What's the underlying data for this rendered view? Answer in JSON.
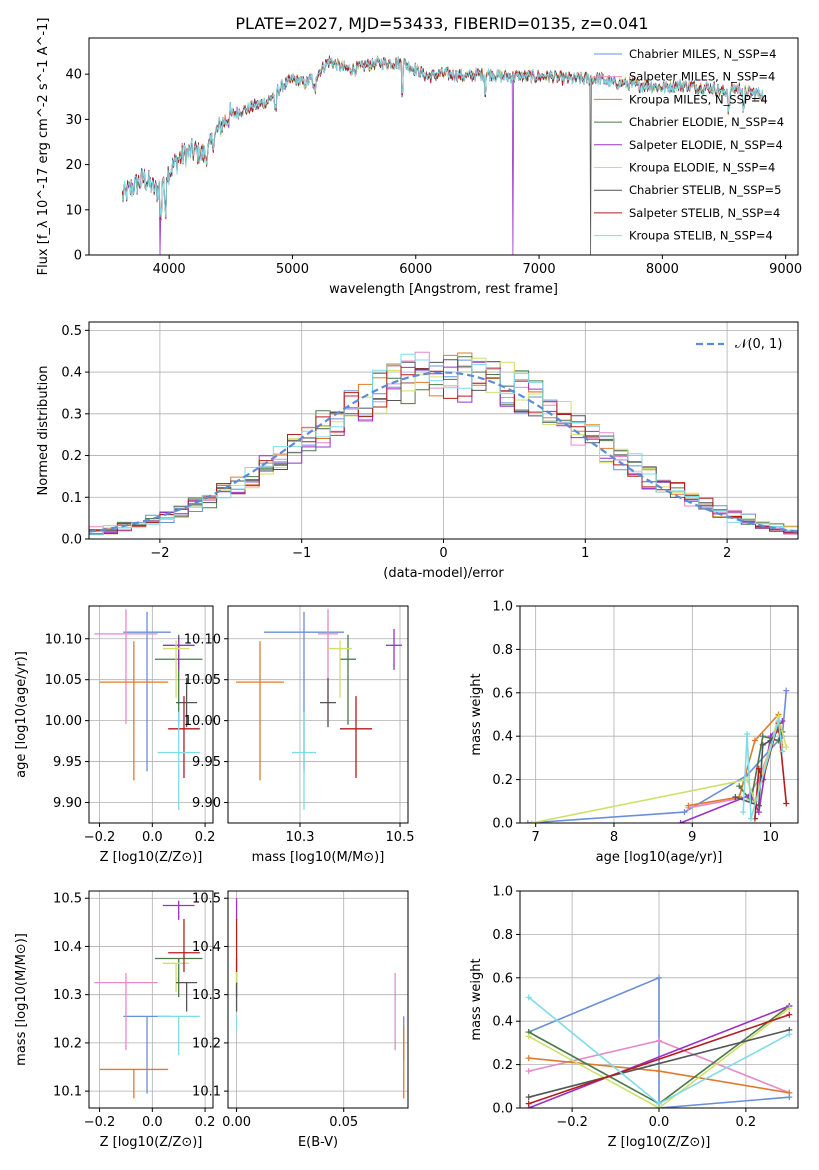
{
  "figure_title": "PLATE=2027, MJD=53433, FIBERID=0135, z=0.041",
  "colors": {
    "s1": "#6b8fd6",
    "s2": "#e58ac6",
    "s3": "#e07b2e",
    "s4": "#4a7a4a",
    "s5": "#9b30c8",
    "s6": "#cfe06a",
    "s7": "#555555",
    "s8": "#b01e1e",
    "s9": "#7fdbe8",
    "normal": "#5b8bd9"
  },
  "legend": {
    "labels": [
      "Chabrier MILES, N_SSP=4",
      "Salpeter MILES, N_SSP=4",
      "Kroupa MILES, N_SSP=4",
      "Chabrier ELODIE, N_SSP=4",
      "Salpeter ELODIE, N_SSP=4",
      "Kroupa ELODIE, N_SSP=4",
      "Chabrier STELIB, N_SSP=5",
      "Salpeter STELIB, N_SSP=4",
      "Kroupa STELIB, N_SSP=4"
    ],
    "normal_label": "𝒩(0, 1)"
  },
  "chart_data": [
    {
      "id": "spectrum",
      "type": "line",
      "xlabel": "wavelength [Angstrom, rest frame]",
      "ylabel": "Flux [f_λ 10^-17 erg cm^-2 s^-1 A^-1]",
      "xlim": [
        3350,
        9100
      ],
      "ylim": [
        0,
        48
      ],
      "xticks": [
        4000,
        5000,
        6000,
        7000,
        8000,
        9000
      ],
      "yticks": [
        0,
        10,
        20,
        30,
        40
      ],
      "grid": false,
      "legend_position": "right",
      "continuum_anchors": [
        [
          3620,
          13
        ],
        [
          3700,
          15
        ],
        [
          3800,
          17
        ],
        [
          3900,
          14
        ],
        [
          3950,
          17
        ],
        [
          4000,
          18.5
        ],
        [
          4100,
          22
        ],
        [
          4200,
          23
        ],
        [
          4300,
          22
        ],
        [
          4400,
          28
        ],
        [
          4500,
          31
        ],
        [
          4600,
          32
        ],
        [
          4700,
          33
        ],
        [
          4800,
          34
        ],
        [
          4900,
          37
        ],
        [
          5000,
          39
        ],
        [
          5100,
          38
        ],
        [
          5200,
          40
        ],
        [
          5300,
          43
        ],
        [
          5400,
          41.5
        ],
        [
          5500,
          41
        ],
        [
          5600,
          42
        ],
        [
          5700,
          42.5
        ],
        [
          5800,
          42.5
        ],
        [
          5900,
          42.5
        ],
        [
          6000,
          41
        ],
        [
          6100,
          39.5
        ],
        [
          6200,
          40
        ],
        [
          6300,
          40
        ],
        [
          6400,
          39.5
        ],
        [
          6500,
          40
        ],
        [
          6600,
          40
        ],
        [
          6700,
          39.5
        ],
        [
          6800,
          39.5
        ],
        [
          6900,
          39.5
        ],
        [
          7000,
          39.5
        ],
        [
          7100,
          39.5
        ],
        [
          7200,
          39
        ],
        [
          7300,
          39
        ],
        [
          7400,
          39
        ],
        [
          7500,
          39
        ],
        [
          7600,
          38
        ],
        [
          7700,
          38
        ],
        [
          7800,
          37.5
        ],
        [
          7900,
          37.5
        ],
        [
          8000,
          37
        ],
        [
          8100,
          37.5
        ],
        [
          8200,
          37.5
        ],
        [
          8300,
          37
        ],
        [
          8400,
          37
        ],
        [
          8500,
          36
        ],
        [
          8600,
          37
        ],
        [
          8700,
          36
        ],
        [
          8820,
          35.5
        ]
      ],
      "dropouts": [
        {
          "series": 5,
          "x": 3925,
          "y_min": 0
        },
        {
          "series": 5,
          "x": 6790,
          "y_min": 0
        },
        {
          "series": 7,
          "x": 7420,
          "y_min": 0
        }
      ]
    },
    {
      "id": "residual_hist",
      "type": "step",
      "xlabel": "(data-model)/error",
      "ylabel": "Normed distribution",
      "xlim": [
        -2.5,
        2.5
      ],
      "ylim": [
        0,
        0.52
      ],
      "xticks": [
        -2,
        -1,
        0,
        1,
        2
      ],
      "yticks": [
        0.0,
        0.1,
        0.2,
        0.3,
        0.4,
        0.5
      ],
      "grid": true,
      "legend_position": "top-right",
      "bin_edges_range": [
        -2.5,
        2.5
      ],
      "n_bins": 50,
      "normal_curve": {
        "mu": 0,
        "sigma": 1
      }
    },
    {
      "id": "age_vs_Z",
      "type": "errorbar",
      "xlabel": "Z [log10(Z/Z⊙)]",
      "ylabel": "age  [log10(age/yr)]",
      "xlim": [
        -0.24,
        0.23
      ],
      "ylim": [
        9.875,
        10.14
      ],
      "xticks": [
        -0.2,
        0.0,
        0.2
      ],
      "yticks": [
        9.9,
        9.95,
        10.0,
        10.05,
        10.1
      ],
      "grid": true,
      "points": [
        {
          "x": -0.02,
          "y": 10.108,
          "xerr": 0.09,
          "yerr": [
            0.17,
            0.025
          ]
        },
        {
          "x": -0.1,
          "y": 10.106,
          "xerr": 0.12,
          "yerr": [
            0.11,
            0.03
          ]
        },
        {
          "x": -0.07,
          "y": 10.047,
          "xerr": 0.13,
          "yerr": [
            0.12,
            0.05
          ]
        },
        {
          "x": 0.1,
          "y": 10.075,
          "xerr": 0.09,
          "yerr": [
            0.08,
            0.03
          ]
        },
        {
          "x": 0.1,
          "y": 10.092,
          "xerr": 0.06,
          "yerr": [
            0.03,
            0.01
          ]
        },
        {
          "x": 0.09,
          "y": 10.088,
          "xerr": 0.05,
          "yerr": [
            0.06,
            0.01
          ]
        },
        {
          "x": 0.13,
          "y": 10.022,
          "xerr": 0.04,
          "yerr": [
            0.03,
            0.03
          ]
        },
        {
          "x": 0.12,
          "y": 9.99,
          "xerr": 0.06,
          "yerr": [
            0.06,
            0.04
          ]
        },
        {
          "x": 0.1,
          "y": 9.961,
          "xerr": 0.08,
          "yerr": [
            0.07,
            0.05
          ]
        }
      ]
    },
    {
      "id": "age_vs_mass",
      "type": "errorbar",
      "xlabel": "mass [log10(M/M⊙)]",
      "ylabel": "",
      "xlim": [
        10.07,
        10.52
      ],
      "ylim": [
        9.875,
        10.14
      ],
      "xticks": [
        10.25,
        10.5
      ],
      "yticks": [
        9.9,
        9.95,
        10.0,
        10.05,
        10.1
      ],
      "grid": true,
      "points": [
        {
          "x": 10.26,
          "y": 10.108,
          "xerr": 0.1,
          "yerr": [
            0.17,
            0.025
          ]
        },
        {
          "x": 10.32,
          "y": 10.106,
          "xerr": 0.025,
          "yerr": [
            0.11,
            0.03
          ]
        },
        {
          "x": 10.15,
          "y": 10.047,
          "xerr": 0.06,
          "yerr": [
            0.12,
            0.05
          ]
        },
        {
          "x": 10.37,
          "y": 10.075,
          "xerr": 0.02,
          "yerr": [
            0.08,
            0.03
          ]
        },
        {
          "x": 10.485,
          "y": 10.092,
          "xerr": 0.02,
          "yerr": [
            0.03,
            0.02
          ]
        },
        {
          "x": 10.35,
          "y": 10.088,
          "xerr": 0.03,
          "yerr": [
            0.06,
            0.01
          ]
        },
        {
          "x": 10.32,
          "y": 10.022,
          "xerr": 0.02,
          "yerr": [
            0.03,
            0.03
          ]
        },
        {
          "x": 10.39,
          "y": 9.99,
          "xerr": 0.04,
          "yerr": [
            0.06,
            0.04
          ]
        },
        {
          "x": 10.26,
          "y": 9.961,
          "xerr": 0.03,
          "yerr": [
            0.07,
            0.05
          ]
        }
      ]
    },
    {
      "id": "mass_weight_vs_age",
      "type": "line",
      "xlabel": "age  [log10(age/yr)]",
      "ylabel": "mass weight",
      "xlim": [
        6.8,
        10.35
      ],
      "ylim": [
        0,
        1.0
      ],
      "xticks": [
        7,
        8,
        9,
        10
      ],
      "yticks": [
        0.0,
        0.2,
        0.4,
        0.6,
        0.8,
        1.0
      ],
      "grid": true,
      "series": [
        {
          "x": [
            6.9,
            8.9,
            9.7,
            10.15,
            10.2
          ],
          "y": [
            0.0,
            0.05,
            0.22,
            0.4,
            0.61
          ]
        },
        {
          "x": [
            8.95,
            9.7,
            9.85,
            10.1,
            10.15
          ],
          "y": [
            0.07,
            0.12,
            0.2,
            0.45,
            0.33
          ]
        },
        {
          "x": [
            8.95,
            9.6,
            9.8,
            10.1,
            10.15
          ],
          "y": [
            0.08,
            0.12,
            0.38,
            0.5,
            0.35
          ]
        },
        {
          "x": [
            9.6,
            9.75,
            9.9,
            10.1,
            10.15
          ],
          "y": [
            0.17,
            0.1,
            0.4,
            0.38,
            0.42
          ]
        },
        {
          "x": [
            8.85,
            9.75,
            9.85,
            10.0,
            10.15
          ],
          "y": [
            0.0,
            0.13,
            0.05,
            0.4,
            0.47
          ]
        },
        {
          "x": [
            6.95,
            9.7,
            9.8,
            10.1,
            10.2
          ],
          "y": [
            0.0,
            0.2,
            0.1,
            0.49,
            0.35
          ]
        },
        {
          "x": [
            9.55,
            9.85,
            9.9,
            10.0,
            10.1
          ],
          "y": [
            0.12,
            0.08,
            0.36,
            0.38,
            0.43
          ]
        },
        {
          "x": [
            9.8,
            9.85,
            9.9,
            10.1,
            10.2
          ],
          "y": [
            0.02,
            0.25,
            0.2,
            0.46,
            0.09
          ]
        },
        {
          "x": [
            9.65,
            9.7,
            9.75,
            10.1,
            10.15
          ],
          "y": [
            0.05,
            0.41,
            0.02,
            0.47,
            0.33
          ]
        }
      ]
    },
    {
      "id": "mass_vs_Z",
      "type": "errorbar",
      "xlabel": "Z [log10(Z/Z⊙)]",
      "ylabel": "mass [log10(M/M⊙)]",
      "xlim": [
        -0.24,
        0.23
      ],
      "ylim": [
        10.065,
        10.515
      ],
      "xticks": [
        -0.2,
        0.0,
        0.2
      ],
      "yticks": [
        10.1,
        10.2,
        10.3,
        10.4,
        10.5
      ],
      "grid": true,
      "points": [
        {
          "x": -0.02,
          "y": 10.255,
          "xerr": 0.09,
          "yerr": [
            0.16,
            0.0
          ]
        },
        {
          "x": -0.1,
          "y": 10.325,
          "xerr": 0.12,
          "yerr": [
            0.14,
            0.02
          ]
        },
        {
          "x": -0.07,
          "y": 10.145,
          "xerr": 0.13,
          "yerr": [
            0.06,
            0.0
          ]
        },
        {
          "x": 0.1,
          "y": 10.375,
          "xerr": 0.09,
          "yerr": [
            0.08,
            0.0
          ]
        },
        {
          "x": 0.1,
          "y": 10.485,
          "xerr": 0.06,
          "yerr": [
            0.03,
            0.01
          ]
        },
        {
          "x": 0.09,
          "y": 10.365,
          "xerr": 0.05,
          "yerr": [
            0.06,
            0.0
          ]
        },
        {
          "x": 0.13,
          "y": 10.325,
          "xerr": 0.04,
          "yerr": [
            0.06,
            0.0
          ]
        },
        {
          "x": 0.12,
          "y": 10.387,
          "xerr": 0.06,
          "yerr": [
            0.04,
            0.07
          ]
        },
        {
          "x": 0.1,
          "y": 10.255,
          "xerr": 0.08,
          "yerr": [
            0.08,
            0.0
          ]
        }
      ]
    },
    {
      "id": "mass_vs_EBV",
      "type": "errorbar",
      "xlabel": "E(B-V)",
      "ylabel": "",
      "xlim": [
        -0.004,
        0.08
      ],
      "ylim": [
        10.065,
        10.515
      ],
      "xticks": [
        0.0,
        0.05
      ],
      "yticks": [
        10.1,
        10.2,
        10.3,
        10.4,
        10.5
      ],
      "grid": true,
      "points": [
        {
          "x": 0.078,
          "y": 10.255,
          "xerr": 0.0,
          "yerr": [
            0.09,
            0.0
          ]
        },
        {
          "x": 0.074,
          "y": 10.325,
          "xerr": 0.0,
          "yerr": [
            0.14,
            0.02
          ]
        },
        {
          "x": 0.078,
          "y": 10.145,
          "xerr": 0.0,
          "yerr": [
            0.06,
            0.09
          ]
        },
        {
          "x": 0.0,
          "y": 10.375,
          "xerr": 0.0,
          "yerr": [
            0.08,
            0.0
          ]
        },
        {
          "x": 0.0,
          "y": 10.485,
          "xerr": 0.0,
          "yerr": [
            0.03,
            0.015
          ]
        },
        {
          "x": 0.0,
          "y": 10.365,
          "xerr": 0.0,
          "yerr": [
            0.06,
            0.0
          ]
        },
        {
          "x": 0.0,
          "y": 10.325,
          "xerr": 0.0,
          "yerr": [
            0.06,
            0.0
          ]
        },
        {
          "x": 0.0,
          "y": 10.387,
          "xerr": 0.0,
          "yerr": [
            0.04,
            0.07
          ]
        },
        {
          "x": 0.0,
          "y": 10.255,
          "xerr": 0.0,
          "yerr": [
            0.03,
            0.0
          ]
        }
      ]
    },
    {
      "id": "mass_weight_vs_Z",
      "type": "line",
      "xlabel": "Z [log10(Z/Z⊙)]",
      "ylabel": "mass weight",
      "xlim": [
        -0.32,
        0.32
      ],
      "ylim": [
        0,
        1.0
      ],
      "xticks": [
        -0.2,
        0.0,
        0.2
      ],
      "yticks": [
        0.0,
        0.2,
        0.4,
        0.6,
        0.8,
        1.0
      ],
      "grid": true,
      "series": [
        {
          "x": [
            -0.3,
            0.0,
            0.0,
            0.3
          ],
          "y": [
            0.35,
            0.6,
            0.0,
            0.05
          ]
        },
        {
          "x": [
            -0.3,
            0.0,
            0.3
          ],
          "y": [
            0.17,
            0.31,
            0.07
          ]
        },
        {
          "x": [
            -0.3,
            0.0,
            0.3
          ],
          "y": [
            0.23,
            0.17,
            0.07
          ]
        },
        {
          "x": [
            -0.3,
            0.0,
            0.3
          ],
          "y": [
            0.35,
            0.02,
            0.47
          ]
        },
        {
          "x": [
            -0.3,
            0.3
          ],
          "y": [
            0.0,
            0.47
          ]
        },
        {
          "x": [
            -0.3,
            0.0,
            0.3
          ],
          "y": [
            0.33,
            0.0,
            0.46
          ]
        },
        {
          "x": [
            -0.3,
            0.3
          ],
          "y": [
            0.05,
            0.36
          ]
        },
        {
          "x": [
            -0.3,
            0.3
          ],
          "y": [
            0.02,
            0.43
          ]
        },
        {
          "x": [
            -0.3,
            0.0,
            0.3
          ],
          "y": [
            0.51,
            0.02,
            0.34
          ]
        }
      ]
    }
  ]
}
